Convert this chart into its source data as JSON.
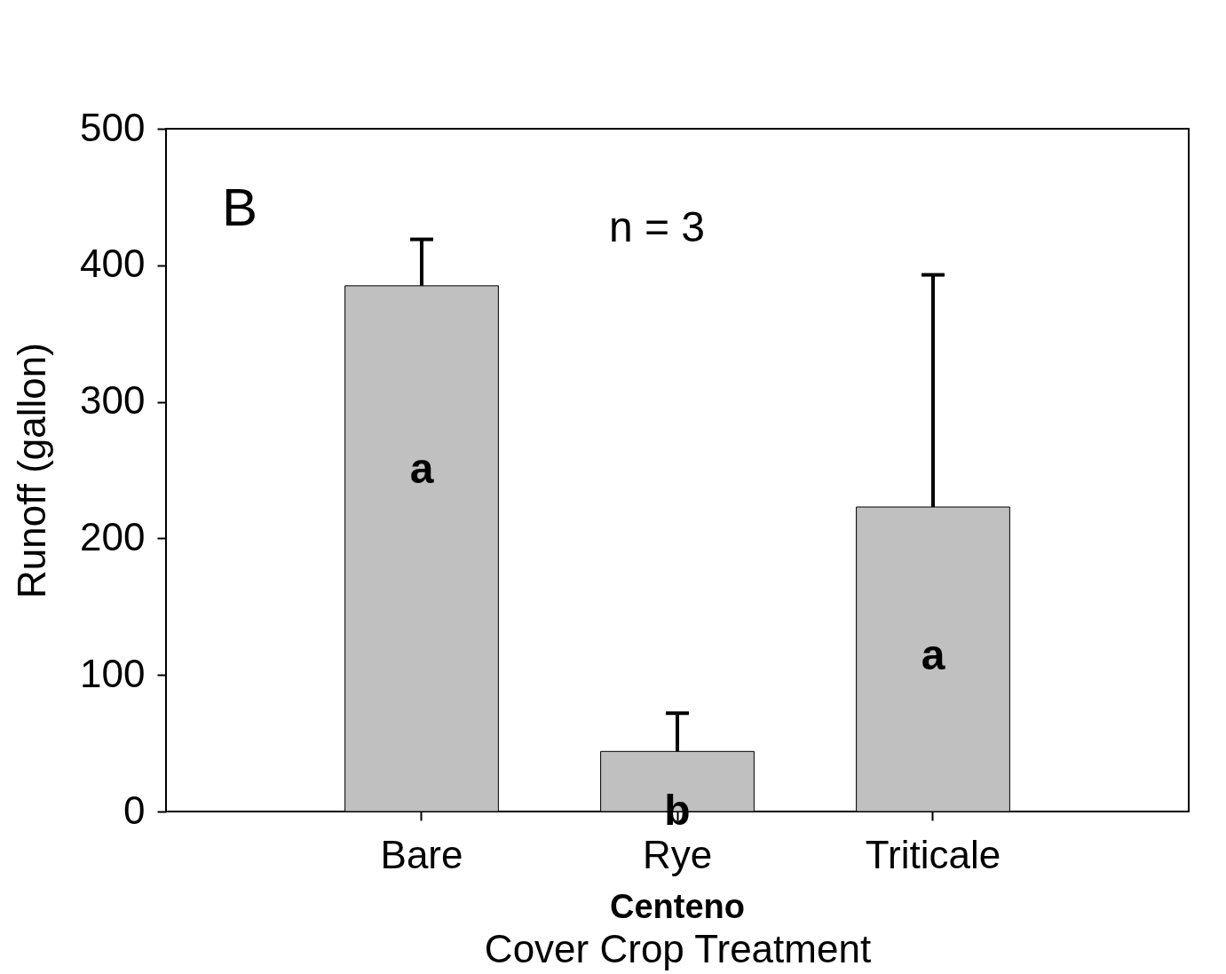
{
  "chart_data": {
    "type": "bar",
    "xlabel": "Cover Crop Treatment",
    "ylabel": "Runoff  (gallon)",
    "categories": [
      "Bare",
      "Rye",
      "Triticale"
    ],
    "values": [
      385,
      44,
      223
    ],
    "errors": [
      [
        385,
        419
      ],
      [
        44,
        72
      ],
      [
        223,
        393
      ]
    ],
    "color": "#c0c0c0",
    "ylim": [
      0,
      500
    ],
    "yticks": [
      0,
      100,
      200,
      300,
      400,
      500
    ],
    "grid": false,
    "annotations": [
      "B",
      "n = 3",
      "a",
      "b",
      "a",
      "Centeno"
    ]
  }
}
